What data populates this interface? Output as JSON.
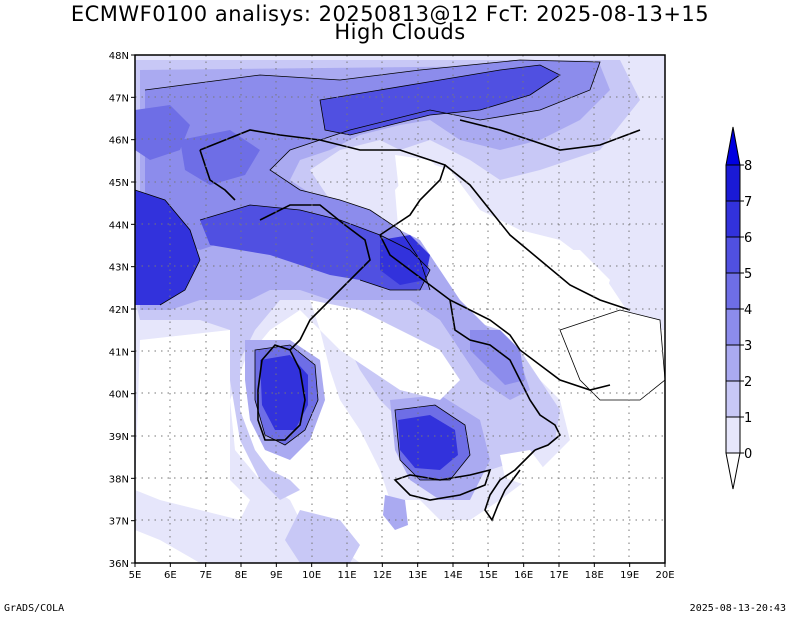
{
  "title": {
    "line1": "ECMWF0100 analisys: 20250813@12 FcT: 2025-08-13+15",
    "line2": "High Clouds"
  },
  "footer": {
    "left": "GrADS/COLA",
    "right": "2025-08-13-20:43"
  },
  "map": {
    "lon_range": [
      5,
      20
    ],
    "lat_range": [
      36,
      48
    ],
    "lon_labels": [
      "5E",
      "6E",
      "7E",
      "8E",
      "9E",
      "10E",
      "11E",
      "12E",
      "13E",
      "14E",
      "15E",
      "16E",
      "17E",
      "18E",
      "19E",
      "20E"
    ],
    "lat_labels": [
      "36N",
      "37N",
      "38N",
      "39N",
      "40N",
      "41N",
      "42N",
      "43N",
      "44N",
      "45N",
      "46N",
      "47N",
      "48N"
    ],
    "grid": true
  },
  "colorbar": {
    "levels": [
      "0",
      "1",
      "2",
      "3",
      "4",
      "5",
      "6",
      "7",
      "8"
    ],
    "colors": [
      "#e6e6fb",
      "#c8c8f6",
      "#aaaaf1",
      "#8c8cec",
      "#6e6ee6",
      "#5050e1",
      "#3232dc",
      "#1a1ad6"
    ]
  }
}
